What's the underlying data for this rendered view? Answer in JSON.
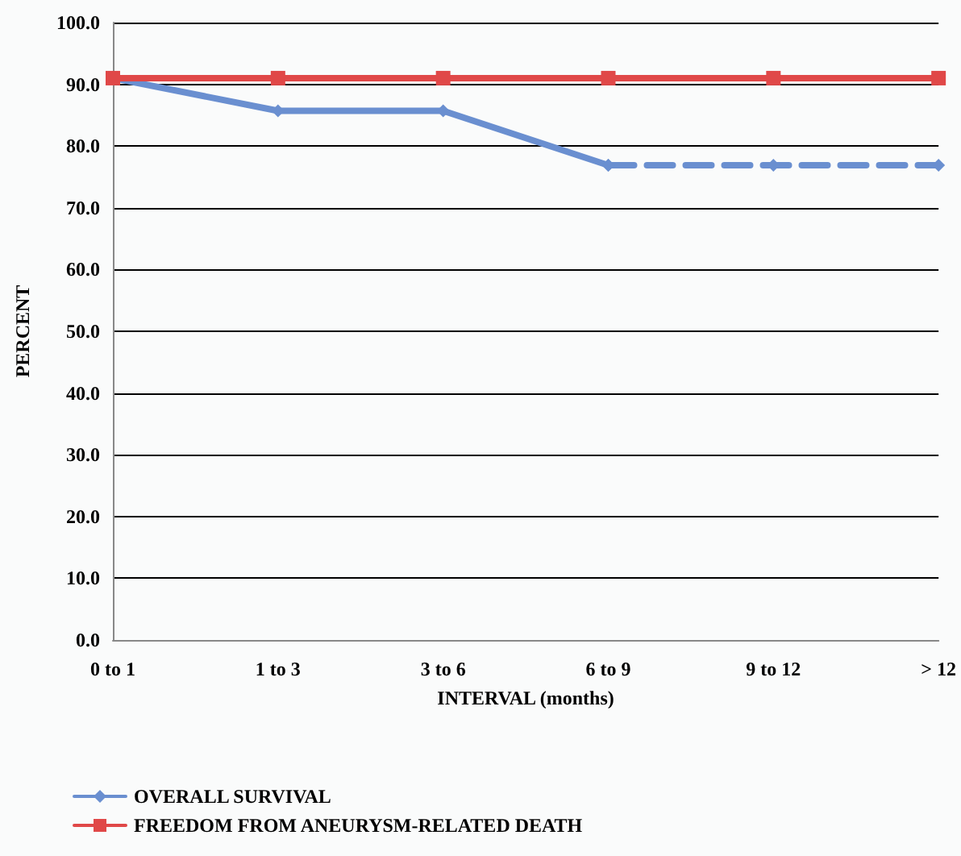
{
  "chart_data": {
    "type": "line",
    "xlabel": "INTERVAL (months)",
    "ylabel": "PERCENT",
    "categories": [
      "0 to 1",
      "1 to 3",
      "3 to 6",
      "6 to 9",
      "9 to 12",
      "> 12"
    ],
    "series": [
      {
        "name": "OVERALL SURVIVAL",
        "color": "#6a8fd0",
        "marker": "diamond",
        "line_style": "solid",
        "values": [
          91,
          85.7,
          85.7,
          76.9,
          null,
          null
        ]
      },
      {
        "color": "#6a8fd0",
        "marker": "diamond",
        "line_style": "dashed",
        "values": [
          null,
          null,
          null,
          76.9,
          76.9,
          76.9
        ]
      },
      {
        "name": "FREEDOM FROM ANEURYSM-RELATED DEATH",
        "color": "#e04848",
        "marker": "square",
        "line_style": "solid",
        "values": [
          91,
          91,
          91,
          91,
          91,
          91
        ]
      }
    ],
    "ylim": [
      0,
      100
    ],
    "yticks": [
      {
        "value": 0,
        "label": "0.0"
      },
      {
        "value": 10,
        "label": "10.0"
      },
      {
        "value": 20,
        "label": "20.0"
      },
      {
        "value": 30,
        "label": "30.0"
      },
      {
        "value": 40,
        "label": "40.0"
      },
      {
        "value": 50,
        "label": "50.0"
      },
      {
        "value": 60,
        "label": "60.0"
      },
      {
        "value": 70,
        "label": "70.0"
      },
      {
        "value": 80,
        "label": "80.0"
      },
      {
        "value": 90,
        "label": "90.0"
      },
      {
        "value": 100,
        "label": "100.0"
      }
    ],
    "grid": "y",
    "legend": "bottom left"
  }
}
